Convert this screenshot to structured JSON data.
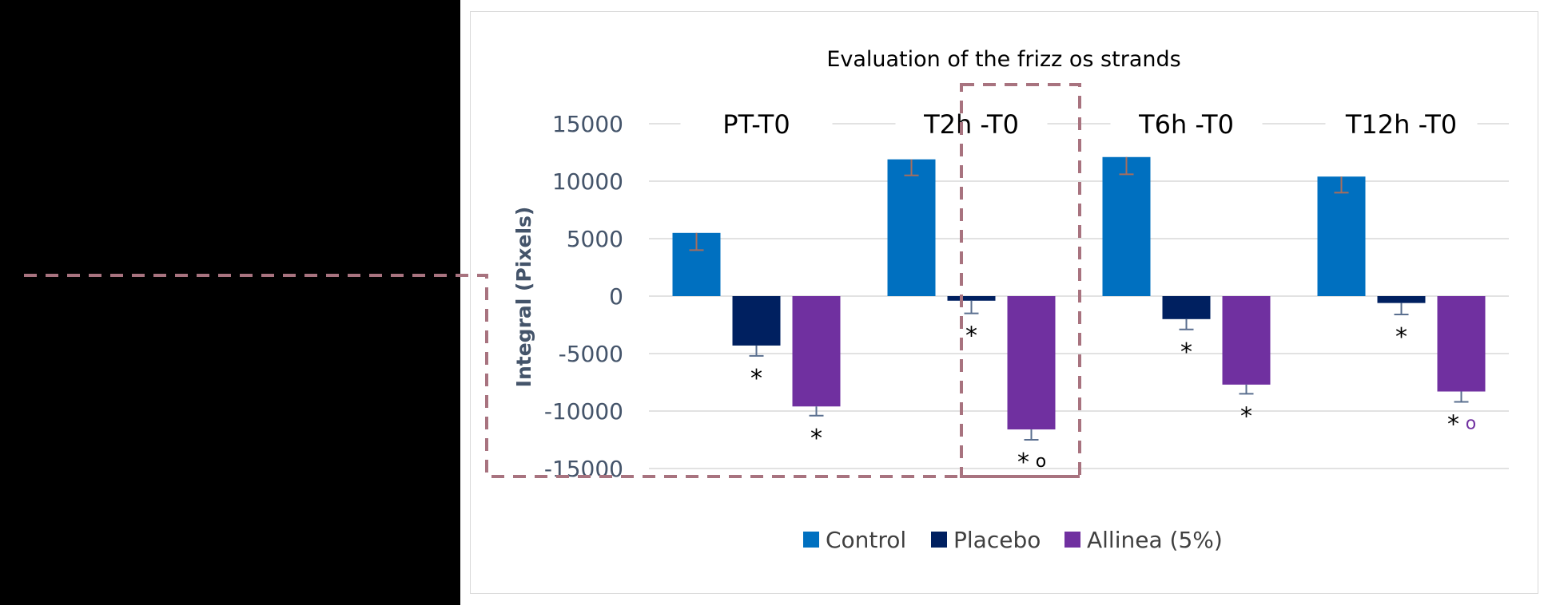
{
  "chart_data": {
    "type": "bar",
    "title": "Evaluation of the frizz os strands",
    "xlabel": "",
    "ylabel": "Integral (Pixels)",
    "ylim": [
      -15000,
      15000
    ],
    "yticks": [
      15000,
      10000,
      5000,
      0,
      -5000,
      -10000,
      -15000
    ],
    "ytick_labels": [
      "15000",
      "10000",
      "5000",
      "0",
      "-5000",
      "-10000",
      "-15000"
    ],
    "grid": true,
    "legend_position": "bottom",
    "categories": [
      "PT-T0",
      "T2h -T0",
      "T6h -T0",
      "T12h -T0"
    ],
    "series": [
      {
        "name": "Control",
        "color": "#0070C0",
        "values": [
          5500,
          11900,
          12100,
          10400
        ],
        "errors": [
          1500,
          1400,
          1500,
          1400
        ],
        "annotations": [
          "",
          "",
          "",
          ""
        ]
      },
      {
        "name": "Placebo",
        "color": "#002060",
        "values": [
          -4300,
          -400,
          -2000,
          -600
        ],
        "errors": [
          900,
          1100,
          900,
          1000
        ],
        "annotations": [
          "*",
          "*",
          "*",
          "*"
        ]
      },
      {
        "name": "Allinea (5%)",
        "color": "#7030A0",
        "values": [
          -9600,
          -11600,
          -7700,
          -8300
        ],
        "errors": [
          800,
          900,
          800,
          900
        ],
        "annotations": [
          "*",
          "*",
          "*",
          "*"
        ],
        "secondary_annotations": [
          "",
          "o",
          "",
          "o"
        ],
        "secondary_colors": [
          "#000000",
          "#000000",
          "#000000",
          "#7030A0"
        ]
      }
    ]
  }
}
